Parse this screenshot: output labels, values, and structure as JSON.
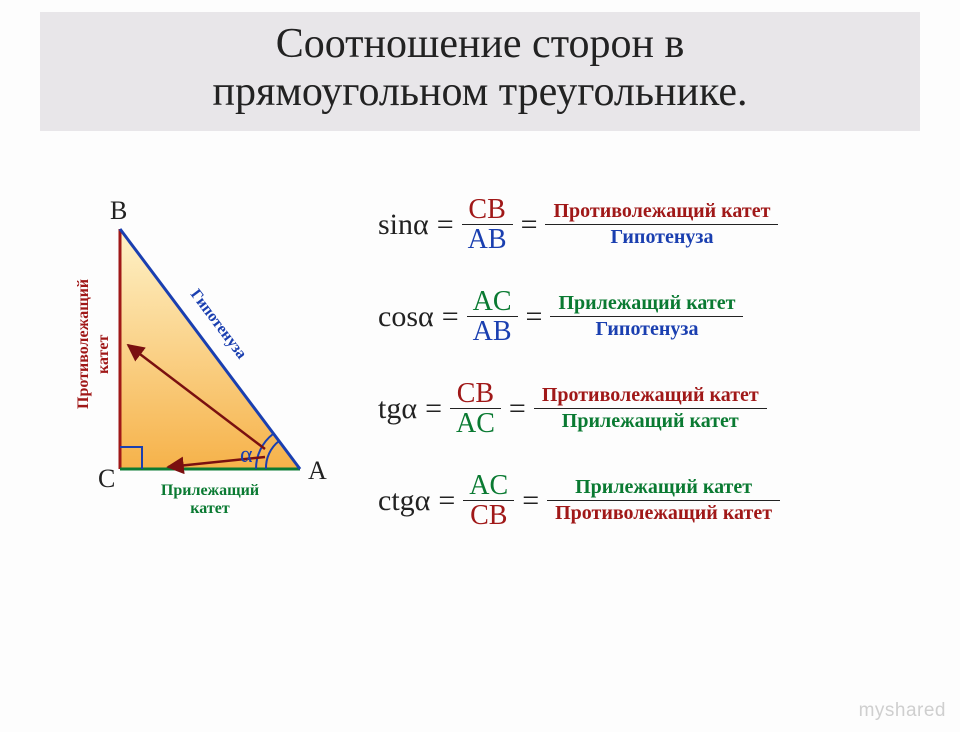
{
  "title_line1": "Соотношение сторон в",
  "title_line2": "прямоугольном треугольнике.",
  "triangle": {
    "A": "A",
    "B": "B",
    "C": "C",
    "alpha": "α",
    "hypotenuse_label": "Гипотенуза",
    "opposite_label_l1": "Противолежащий",
    "opposite_label_l2": "катет",
    "adjacent_label_l1": "Прилежащий",
    "adjacent_label_l2": "катет",
    "colors": {
      "fill_top": "#fef2c8",
      "fill_bottom": "#f6b24a",
      "hyp": "#1a3fb0",
      "opp": "#a01818",
      "adj": "#0a7a32",
      "arrow": "#7a1010",
      "vertex": "#222"
    }
  },
  "formulas": [
    {
      "fn": "sinα",
      "num": "CB",
      "numClass": "c-red",
      "den": "AB",
      "denClass": "c-blue",
      "word_num": "Противолежащий катет",
      "word_num_class": "c-red",
      "word_den": "Гипотенуза",
      "word_den_class": "c-blue"
    },
    {
      "fn": "cosα",
      "num": "AC",
      "numClass": "c-green",
      "den": "AB",
      "denClass": "c-blue",
      "word_num": "Прилежащий катет",
      "word_num_class": "c-green",
      "word_den": "Гипотенуза",
      "word_den_class": "c-blue"
    },
    {
      "fn": "tgα",
      "num": "CB",
      "numClass": "c-red",
      "den": "AC",
      "denClass": "c-green",
      "word_num": "Противолежащий катет",
      "word_num_class": "c-red",
      "word_den": "Прилежащий катет",
      "word_den_class": "c-green"
    },
    {
      "fn": "ctgα",
      "num": "AC",
      "numClass": "c-green",
      "den": "CB",
      "denClass": "c-red",
      "word_num": "Прилежащий катет",
      "word_num_class": "c-green",
      "word_den": "Противолежащий катет",
      "word_den_class": "c-red"
    }
  ],
  "watermark": {
    "gray": "myshared",
    "orange": ""
  }
}
